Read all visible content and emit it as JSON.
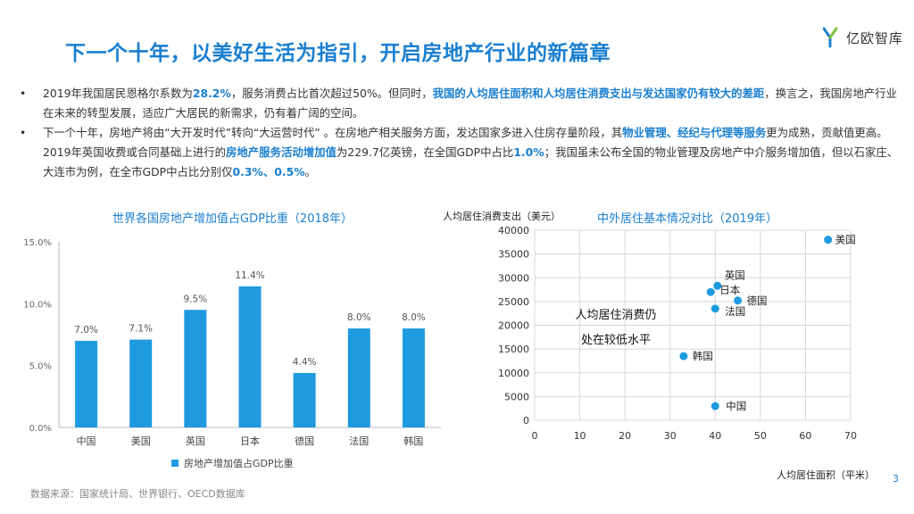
{
  "title": "下一个十年，以美好生活为指引，开启房地产行业的新篇章",
  "logo": {
    "text": "亿欧智库"
  },
  "bullets": [
    {
      "segments": [
        {
          "t": "2019年我国居民恩格尔系数为",
          "h": false
        },
        {
          "t": "28.2%",
          "h": true
        },
        {
          "t": "，服务消费占比首次超过50%。但同时，",
          "h": false
        },
        {
          "t": "我国的人均居住面积和人均居住消费支出与发达国家仍有较大的差距",
          "h": true
        },
        {
          "t": "，换言之，我国房地产行业在未来的转型发展，适应广大居民的新需求，仍有着广阔的空间。",
          "h": false
        }
      ]
    },
    {
      "segments": [
        {
          "t": "下一个十年，房地产将由“大开发时代”转向“大运营时代” 。在房地产相关服务方面，发达国家多进入住房存量阶段，其",
          "h": false
        },
        {
          "t": "物业管理、经纪与代理等服务",
          "h": true
        },
        {
          "t": "更为成熟，贡献值更高。2019年英国收费或合同基础上进行的",
          "h": false
        },
        {
          "t": "房地产服务活动增加值",
          "h": true
        },
        {
          "t": "为229.7亿英镑，在全国GDP中占比",
          "h": false
        },
        {
          "t": "1.0%",
          "h": true
        },
        {
          "t": "；我国虽未公布全国的物业管理及房地产中介服务增加值，但以石家庄、大连市为例，在全市GDP中占比分别仅",
          "h": false
        },
        {
          "t": "0.3%、0.5%",
          "h": true
        },
        {
          "t": "。",
          "h": false
        }
      ]
    }
  ],
  "bullet_marker": "•",
  "chart_data": [
    {
      "type": "bar",
      "title": "世界各国房地产增加值占GDP比重（2018年）",
      "categories": [
        "中国",
        "美国",
        "英国",
        "日本",
        "德国",
        "法国",
        "韩国"
      ],
      "series": [
        {
          "name": "房地产增加值占GDP比重",
          "values": [
            7.0,
            7.1,
            9.5,
            11.4,
            4.4,
            8.0,
            8.0
          ]
        }
      ],
      "data_labels": [
        "7.0%",
        "7.1%",
        "9.5%",
        "11.4%",
        "4.4%",
        "8.0%",
        "8.0%"
      ],
      "y_ticks": [
        0,
        5,
        10,
        15
      ],
      "y_tick_labels": [
        "0.0%",
        "5.0%",
        "10.0%",
        "15.0%"
      ],
      "ylim": [
        0,
        15
      ],
      "grid": false,
      "legend_position": "bottom",
      "color": "#1e9be0"
    },
    {
      "type": "scatter",
      "title": "中外居住基本情况对比（2019年）",
      "xlabel": "人均居住面积（平米）",
      "ylabel": "人均居住消费支出（美元）",
      "xlim": [
        0,
        70
      ],
      "ylim": [
        0,
        40000
      ],
      "x_ticks": [
        0,
        10,
        20,
        30,
        40,
        50,
        60,
        70
      ],
      "y_ticks": [
        0,
        5000,
        10000,
        15000,
        20000,
        25000,
        30000,
        35000,
        40000
      ],
      "grid": true,
      "points": [
        {
          "label": "美国",
          "x": 65,
          "y": 38000
        },
        {
          "label": "英国",
          "x": 40.5,
          "y": 28300
        },
        {
          "label": "日本",
          "x": 39,
          "y": 27000
        },
        {
          "label": "德国",
          "x": 45,
          "y": 25200
        },
        {
          "label": "法国",
          "x": 40,
          "y": 23500
        },
        {
          "label": "韩国",
          "x": 33,
          "y": 13500
        },
        {
          "label": "中国",
          "x": 40,
          "y": 3000
        }
      ],
      "annotation": [
        "人均居住消费仍",
        "处在较低水平"
      ],
      "color": "#1e9be0"
    }
  ],
  "source": "数据来源：国家统计局、世界银行、OECD数据库",
  "page_number": "3"
}
